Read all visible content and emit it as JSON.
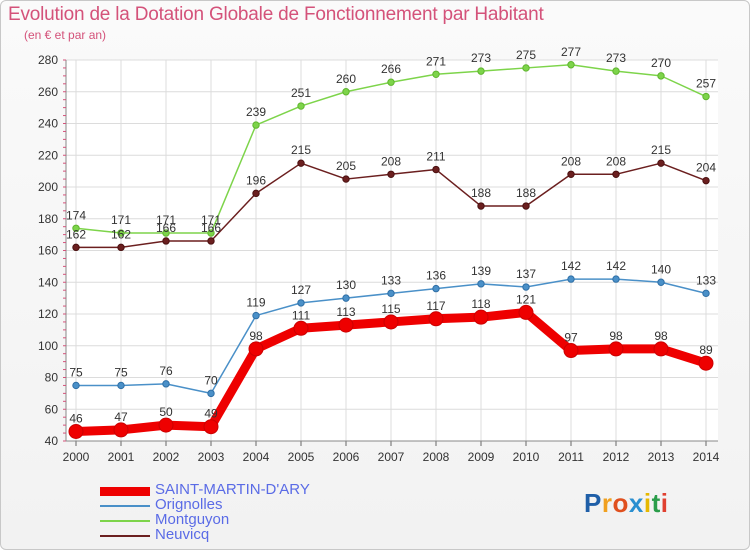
{
  "chart_data": {
    "type": "line",
    "title": "Evolution de la Dotation Globale de Fonctionnement par Habitant",
    "subtitle": "(en € et par an)",
    "xlabel": "",
    "ylabel": "",
    "categories": [
      "2000",
      "2001",
      "2002",
      "2003",
      "2004",
      "2005",
      "2006",
      "2007",
      "2008",
      "2009",
      "2010",
      "2011",
      "2012",
      "2013",
      "2014"
    ],
    "ylim": [
      40,
      280
    ],
    "yticks": [
      40,
      60,
      80,
      100,
      120,
      140,
      160,
      180,
      200,
      220,
      240,
      260,
      280
    ],
    "grid": true,
    "legend_position": "bottom-left",
    "series": [
      {
        "name": "SAINT-MARTIN-D'ARY",
        "color": "#ee0000",
        "values": [
          46,
          47,
          50,
          49,
          98,
          111,
          113,
          115,
          117,
          118,
          121,
          97,
          98,
          98,
          89
        ]
      },
      {
        "name": "Orignolles",
        "color": "#4a90c8",
        "values": [
          75,
          75,
          76,
          70,
          119,
          127,
          130,
          133,
          136,
          139,
          137,
          142,
          142,
          140,
          133
        ]
      },
      {
        "name": "Montguyon",
        "color": "#7dd44a",
        "values": [
          174,
          171,
          171,
          171,
          239,
          251,
          260,
          266,
          271,
          273,
          275,
          277,
          273,
          270,
          257
        ]
      },
      {
        "name": "Neuvicq",
        "color": "#6b1f1f",
        "values": [
          162,
          162,
          166,
          166,
          196,
          215,
          205,
          208,
          211,
          188,
          188,
          208,
          208,
          215,
          204
        ]
      }
    ]
  },
  "logo": {
    "letters": [
      "P",
      "r",
      "o",
      "x",
      "i",
      "t",
      "i"
    ],
    "colors": [
      "#1f5fa8",
      "#f0a020",
      "#e0501e",
      "#2a8fd0",
      "#e6b800",
      "#2a9d4a",
      "#e04030"
    ]
  }
}
